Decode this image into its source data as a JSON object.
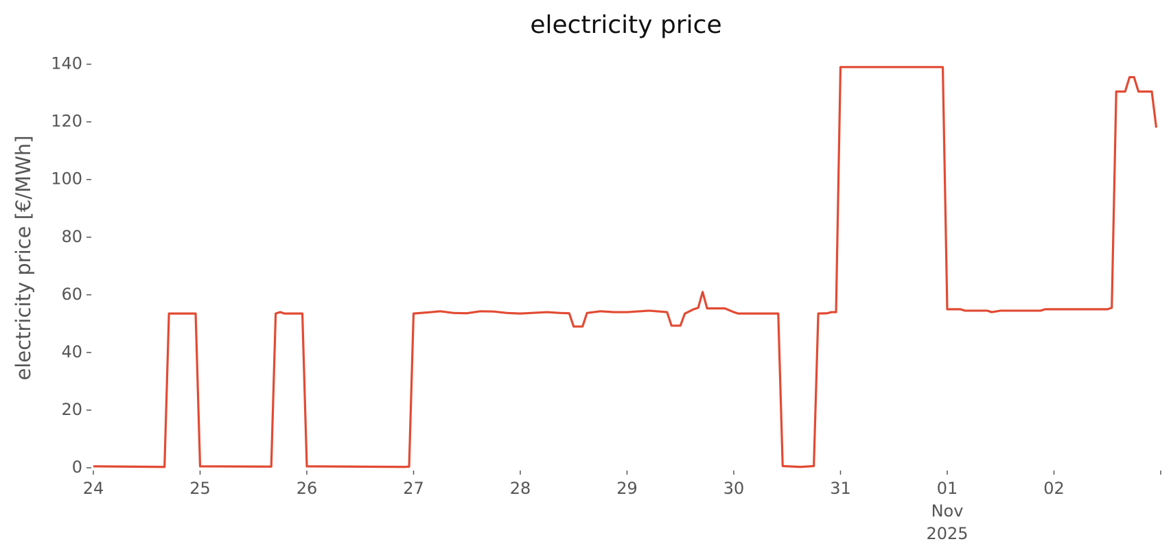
{
  "chart_data": {
    "type": "line",
    "title": "electricity price",
    "ylabel": "electricity price [€/MWh]",
    "ylim": [
      0,
      143
    ],
    "yticks": [
      0,
      20,
      40,
      60,
      80,
      100,
      120,
      140
    ],
    "xlim": [
      "2025-10-24T00:00",
      "2025-11-03T00:00"
    ],
    "xticks": [
      {
        "value": "2025-10-24T00:00",
        "label": "24"
      },
      {
        "value": "2025-10-25T00:00",
        "label": "25"
      },
      {
        "value": "2025-10-26T00:00",
        "label": "26"
      },
      {
        "value": "2025-10-27T00:00",
        "label": "27"
      },
      {
        "value": "2025-10-28T00:00",
        "label": "28"
      },
      {
        "value": "2025-10-29T00:00",
        "label": "29"
      },
      {
        "value": "2025-10-30T00:00",
        "label": "30"
      },
      {
        "value": "2025-10-31T00:00",
        "label": "31"
      },
      {
        "value": "2025-11-01T00:00",
        "label": "01\nNov\n2025"
      },
      {
        "value": "2025-11-02T00:00",
        "label": "02"
      },
      {
        "value": "2025-11-03T00:00",
        "label": null
      }
    ],
    "grid": false,
    "x": [
      "2025-10-24T00:00",
      "2025-10-24T16:00",
      "2025-10-24T17:00",
      "2025-10-24T23:00",
      "2025-10-25T00:00",
      "2025-10-25T16:00",
      "2025-10-25T17:00",
      "2025-10-25T18:00",
      "2025-10-25T19:00",
      "2025-10-25T23:00",
      "2025-10-26T00:00",
      "2025-10-26T22:00",
      "2025-10-26T23:00",
      "2025-10-27T00:00",
      "2025-10-27T04:00",
      "2025-10-27T06:00",
      "2025-10-27T09:00",
      "2025-10-27T12:00",
      "2025-10-27T15:00",
      "2025-10-27T18:00",
      "2025-10-27T21:00",
      "2025-10-28T00:00",
      "2025-10-28T06:00",
      "2025-10-28T09:00",
      "2025-10-28T11:00",
      "2025-10-28T12:00",
      "2025-10-28T14:00",
      "2025-10-28T15:00",
      "2025-10-28T18:00",
      "2025-10-28T21:00",
      "2025-10-29T00:00",
      "2025-10-29T05:00",
      "2025-10-29T09:00",
      "2025-10-29T10:00",
      "2025-10-29T12:00",
      "2025-10-29T13:00",
      "2025-10-29T15:00",
      "2025-10-29T16:00",
      "2025-10-29T17:00",
      "2025-10-29T18:00",
      "2025-10-29T22:00",
      "2025-10-30T00:00",
      "2025-10-30T01:00",
      "2025-10-30T10:00",
      "2025-10-30T11:00",
      "2025-10-30T15:00",
      "2025-10-30T18:00",
      "2025-10-30T19:00",
      "2025-10-30T21:00",
      "2025-10-30T22:00",
      "2025-10-30T23:00",
      "2025-10-31T00:00",
      "2025-10-31T23:00",
      "2025-11-01T00:00",
      "2025-11-01T03:00",
      "2025-11-01T04:00",
      "2025-11-01T09:00",
      "2025-11-01T10:00",
      "2025-11-01T12:00",
      "2025-11-01T21:00",
      "2025-11-01T22:00",
      "2025-11-02T00:00",
      "2025-11-02T12:00",
      "2025-11-02T13:00",
      "2025-11-02T14:00",
      "2025-11-02T16:00",
      "2025-11-02T17:00",
      "2025-11-02T18:00",
      "2025-11-02T19:00",
      "2025-11-02T22:00",
      "2025-11-02T23:00"
    ],
    "series": [
      {
        "name": "electricity price",
        "color": "#e24a33",
        "values": [
          0.5,
          0.3,
          53.5,
          53.5,
          0.5,
          0.4,
          53.5,
          54,
          53.5,
          53.5,
          0.5,
          0.3,
          0.4,
          53.5,
          54,
          54.3,
          53.7,
          53.6,
          54.3,
          54.2,
          53.7,
          53.5,
          54,
          53.7,
          53.6,
          49,
          49,
          53.7,
          54.3,
          54,
          54,
          54.5,
          54,
          49.3,
          49.3,
          53.5,
          55,
          55.5,
          61,
          55.3,
          55.3,
          54,
          53.5,
          53.5,
          0.6,
          0.3,
          0.6,
          53.5,
          53.6,
          54,
          54,
          139,
          139,
          55,
          55,
          54.5,
          54.5,
          54,
          54.5,
          54.5,
          55,
          55,
          55,
          55.5,
          130.5,
          130.5,
          135.5,
          135.5,
          130.5,
          130.5,
          118
        ]
      }
    ]
  }
}
